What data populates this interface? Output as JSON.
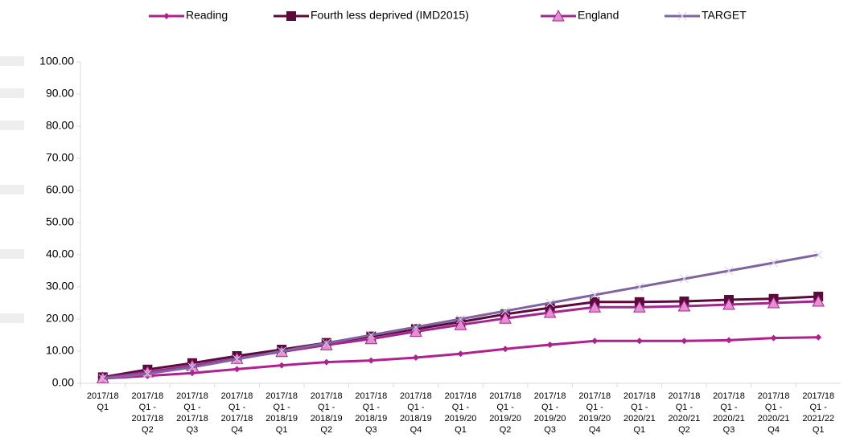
{
  "chart_data": {
    "type": "line",
    "categories": [
      "2017/18 Q1",
      "2017/18 Q1 - 2017/18 Q2",
      "2017/18 Q1 - 2017/18 Q3",
      "2017/18 Q1 - 2017/18 Q4",
      "2017/18 Q1 - 2018/19 Q1",
      "2017/18 Q1 - 2018/19 Q2",
      "2017/18 Q1 - 2018/19 Q3",
      "2017/18 Q1 - 2018/19 Q4",
      "2017/18 Q1 - 2019/20 Q1",
      "2017/18 Q1 - 2019/20 Q2",
      "2017/18 Q1 - 2019/20 Q3",
      "2017/18 Q1 - 2019/20 Q4",
      "2017/18 Q1 - 2020/21 Q1",
      "2017/18 Q1 - 2020/21 Q2",
      "2017/18 Q1 - 2020/21 Q3",
      "2017/18 Q1 - 2020/21 Q4",
      "2017/18 Q1 - 2021/22 Q1"
    ],
    "series": [
      {
        "name": "Reading",
        "color": "#b0208f",
        "marker": "diamond",
        "values": [
          1.5,
          2.3,
          3.2,
          4.4,
          5.6,
          6.6,
          7.1,
          8.0,
          9.2,
          10.7,
          12.0,
          13.2,
          13.2,
          13.2,
          13.4,
          14.1,
          14.3
        ]
      },
      {
        "name": "Fourth less deprived (IMD2015)",
        "color": "#5c0a3c",
        "marker": "square",
        "values": [
          1.9,
          4.3,
          6.3,
          8.5,
          10.5,
          12.6,
          14.6,
          16.9,
          19.1,
          21.5,
          23.5,
          25.3,
          25.3,
          25.5,
          26.0,
          26.3,
          27.0
        ]
      },
      {
        "name": "England",
        "color": "#a1268f",
        "marker": "triangle",
        "values": [
          1.7,
          3.5,
          5.5,
          7.7,
          9.8,
          11.9,
          13.8,
          16.1,
          18.2,
          20.2,
          22.0,
          23.7,
          23.7,
          24.0,
          24.5,
          25.0,
          25.5
        ]
      },
      {
        "name": "TARGET",
        "color": "#8064a2",
        "marker": "x",
        "values": [
          1.5,
          3.0,
          5.0,
          7.5,
          10.0,
          12.5,
          15.0,
          17.5,
          20.0,
          22.5,
          25.0,
          27.5,
          30.0,
          32.5,
          35.0,
          37.5,
          40.0
        ]
      }
    ],
    "ylim": [
      0,
      100
    ],
    "yticks": [
      {
        "value": 0,
        "label": "0.00"
      },
      {
        "value": 10,
        "label": "10.00"
      },
      {
        "value": 20,
        "label": "20.00"
      },
      {
        "value": 30,
        "label": "30.00"
      },
      {
        "value": 40,
        "label": "40.00"
      },
      {
        "value": 50,
        "label": "50.00"
      },
      {
        "value": 60,
        "label": "60.00"
      },
      {
        "value": 70,
        "label": "70.00"
      },
      {
        "value": 80,
        "label": "80.00"
      },
      {
        "value": 90,
        "label": "90.00"
      },
      {
        "value": 100,
        "label": "100.00"
      }
    ],
    "grid": false,
    "legend": "top"
  }
}
